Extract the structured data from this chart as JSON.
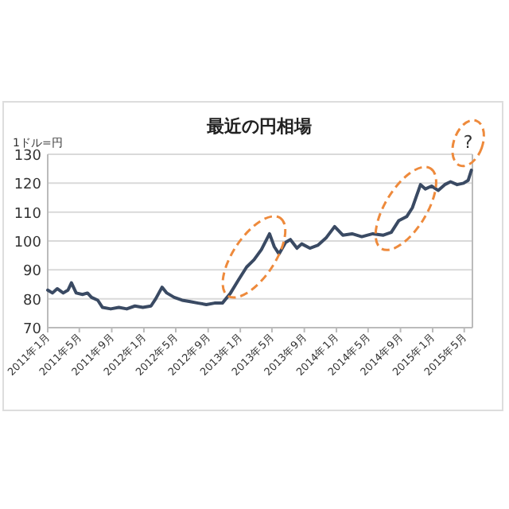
{
  "chart_data": {
    "type": "line",
    "title": "最近の円相場",
    "ylabel": "1ドル=円",
    "x": [
      "2011-01-01",
      "2011-01-19",
      "2011-02-06",
      "2011-03-01",
      "2011-03-19",
      "2011-04-01",
      "2011-04-19",
      "2011-05-13",
      "2011-06-01",
      "2011-06-16",
      "2011-07-10",
      "2011-07-28",
      "2011-08-28",
      "2011-09-28",
      "2011-10-28",
      "2011-11-28",
      "2011-12-28",
      "2012-01-28",
      "2012-02-15",
      "2012-03-10",
      "2012-03-28",
      "2012-04-25",
      "2012-05-25",
      "2012-06-25",
      "2012-07-25",
      "2012-08-25",
      "2012-09-25",
      "2012-10-25",
      "2012-11-25",
      "2012-12-25",
      "2013-01-25",
      "2013-02-22",
      "2013-03-22",
      "2013-04-22",
      "2013-05-10",
      "2013-05-28",
      "2013-06-22",
      "2013-07-10",
      "2013-08-04",
      "2013-08-22",
      "2013-09-22",
      "2013-10-22",
      "2013-11-22",
      "2013-12-25",
      "2014-01-25",
      "2014-03-01",
      "2014-04-07",
      "2014-05-19",
      "2014-06-28",
      "2014-07-28",
      "2014-08-25",
      "2014-09-25",
      "2014-10-16",
      "2014-11-16",
      "2014-12-04",
      "2014-12-28",
      "2015-01-22",
      "2015-02-16",
      "2015-03-10",
      "2015-04-04",
      "2015-04-28",
      "2015-05-16",
      "2015-05-28"
    ],
    "series": [
      {
        "color": "#3a4a63",
        "values": [
          83,
          82,
          83.5,
          82,
          83,
          85.5,
          82,
          81.5,
          82,
          80.5,
          79.5,
          77,
          76.5,
          77,
          76.5,
          77.5,
          77,
          77.5,
          80,
          84,
          82,
          80.5,
          79.5,
          79,
          78.5,
          78,
          78.5,
          78.5,
          82,
          86.5,
          91,
          93.5,
          97,
          102.5,
          98,
          95.5,
          99.5,
          100.5,
          97.5,
          99,
          97.5,
          98.5,
          101,
          105,
          102,
          102.5,
          101.5,
          102.5,
          102,
          103,
          107,
          108.5,
          111.5,
          119.5,
          118,
          119,
          117.5,
          119.5,
          120.5,
          119.5,
          120,
          121,
          124.5
        ]
      }
    ],
    "xlim": [
      "2011-01-01",
      "2015-06-01"
    ],
    "xticks": [
      {
        "value": "2011-01-01",
        "label": "2011年1月"
      },
      {
        "value": "2011-05-01",
        "label": "2011年5月"
      },
      {
        "value": "2011-09-01",
        "label": "2011年9月"
      },
      {
        "value": "2012-01-01",
        "label": "2012年1月"
      },
      {
        "value": "2012-05-01",
        "label": "2012年5月"
      },
      {
        "value": "2012-09-01",
        "label": "2012年9月"
      },
      {
        "value": "2013-01-01",
        "label": "2013年1月"
      },
      {
        "value": "2013-05-01",
        "label": "2013年5月"
      },
      {
        "value": "2013-09-01",
        "label": "2013年9月"
      },
      {
        "value": "2014-01-01",
        "label": "2014年1月"
      },
      {
        "value": "2014-05-01",
        "label": "2014年5月"
      },
      {
        "value": "2014-09-01",
        "label": "2014年9月"
      },
      {
        "value": "2015-01-01",
        "label": "2015年1月"
      },
      {
        "value": "2015-05-01",
        "label": "2015年5月"
      }
    ],
    "ylim": [
      70,
      130
    ],
    "yticks": [
      70,
      80,
      90,
      100,
      110,
      120,
      130
    ],
    "grid": "y",
    "annotations": [
      {
        "text": "?",
        "x": "2015-05-28",
        "y": 124.5
      }
    ]
  }
}
